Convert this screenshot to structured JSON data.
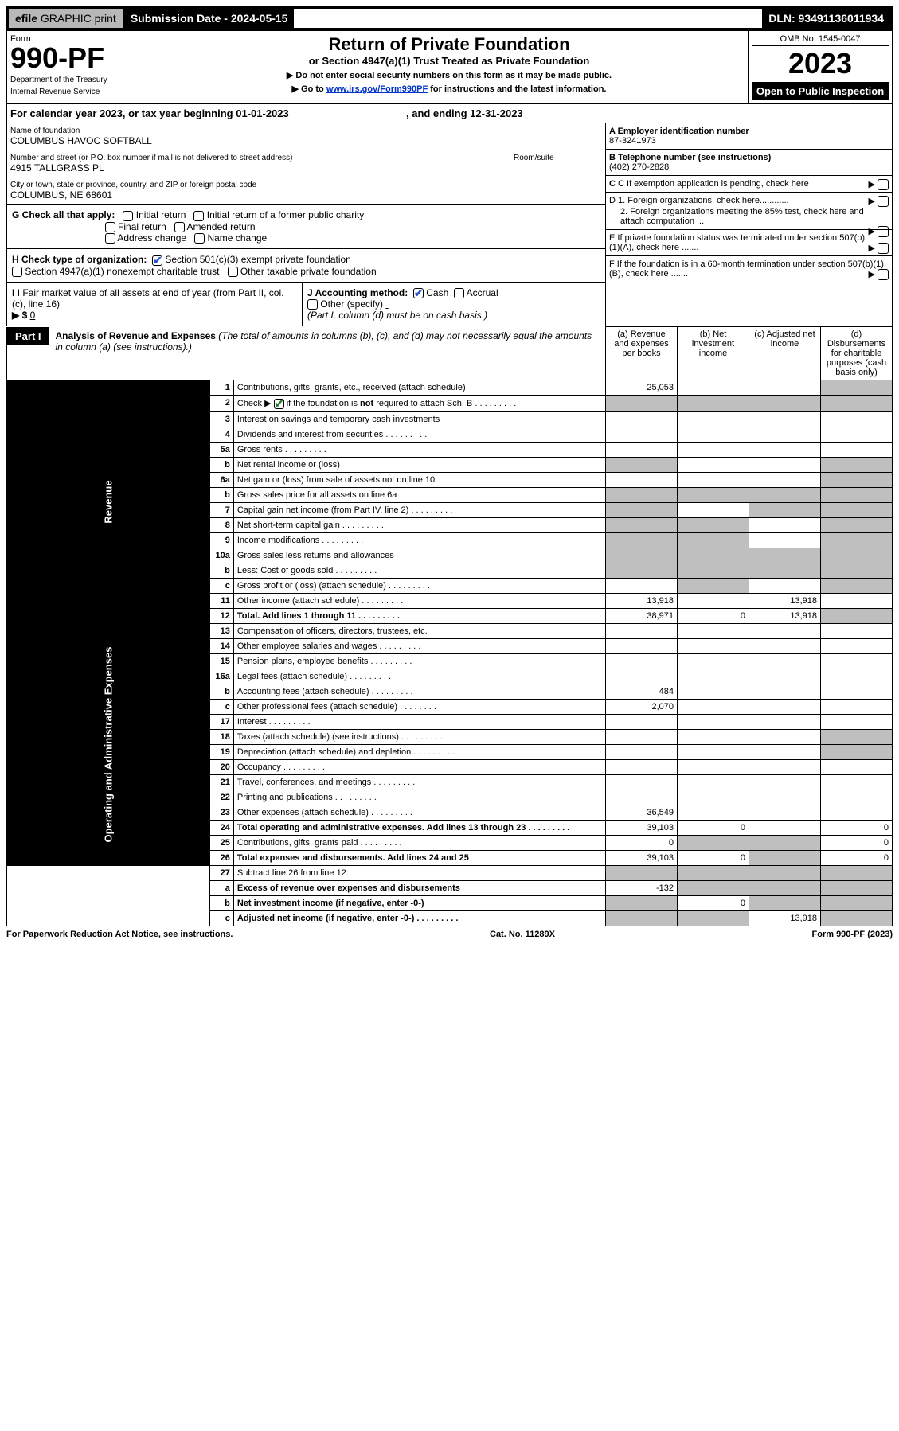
{
  "topbar": {
    "efile_prefix": "efile",
    "efile_words": "GRAPHIC  print",
    "submission_label": "Submission Date - 2024-05-15",
    "dln": "DLN: 93491136011934"
  },
  "header": {
    "form_word": "Form",
    "form_number": "990-PF",
    "dept": "Department of the Treasury",
    "irs": "Internal Revenue Service",
    "title_main": "Return of Private Foundation",
    "title_sub": "or Section 4947(a)(1) Trust Treated as Private Foundation",
    "note1": "▶ Do not enter social security numbers on this form as it may be made public.",
    "note2_pre": "▶ Go to ",
    "note2_link": "www.irs.gov/Form990PF",
    "note2_post": " for instructions and the latest information.",
    "omb": "OMB No. 1545-0047",
    "year": "2023",
    "open_public": "Open to Public Inspection"
  },
  "calendar": {
    "text_pre": "For calendar year 2023, or tax year beginning ",
    "begin": "01-01-2023",
    "mid": " , and ending ",
    "end": "12-31-2023"
  },
  "info": {
    "name_lbl": "Name of foundation",
    "name_val": "COLUMBUS HAVOC SOFTBALL",
    "addr_lbl": "Number and street (or P.O. box number if mail is not delivered to street address)",
    "addr_val": "4915 TALLGRASS PL",
    "room_lbl": "Room/suite",
    "city_lbl": "City or town, state or province, country, and ZIP or foreign postal code",
    "city_val": "COLUMBUS, NE  68601",
    "a_lbl": "A Employer identification number",
    "a_val": "87-3241973",
    "b_lbl": "B Telephone number (see instructions)",
    "b_val": "(402) 270-2828",
    "c_lbl": "C If exemption application is pending, check here",
    "d1_lbl": "D 1. Foreign organizations, check here............",
    "d2_lbl": "2. Foreign organizations meeting the 85% test, check here and attach computation ...",
    "e_lbl": "E  If private foundation status was terminated under section 507(b)(1)(A), check here .......",
    "f_lbl": "F  If the foundation is in a 60-month termination under section 507(b)(1)(B), check here .......",
    "g_lbl": "G Check all that apply:",
    "g_opts": [
      "Initial return",
      "Initial return of a former public charity",
      "Final return",
      "Amended return",
      "Address change",
      "Name change"
    ],
    "h_lbl": "H Check type of organization:",
    "h_opt1": "Section 501(c)(3) exempt private foundation",
    "h_opt2": "Section 4947(a)(1) nonexempt charitable trust",
    "h_opt3": "Other taxable private foundation",
    "i_lbl": "I Fair market value of all assets at end of year (from Part II, col. (c), line 16) ",
    "i_arrow": "▶ $",
    "i_val": "0",
    "j_lbl": "J Accounting method:",
    "j_cash": "Cash",
    "j_accrual": "Accrual",
    "j_other": "Other (specify)",
    "j_note": "(Part I, column (d) must be on cash basis.)"
  },
  "part1": {
    "label": "Part I",
    "title": "Analysis of Revenue and Expenses",
    "title_note": "(The total of amounts in columns (b), (c), and (d) may not necessarily equal the amounts in column (a) (see instructions).)",
    "col_a": "(a)  Revenue and expenses per books",
    "col_b": "(b)  Net investment income",
    "col_c": "(c)  Adjusted net income",
    "col_d": "(d)  Disbursements for charitable purposes (cash basis only)"
  },
  "side_labels": {
    "rev": "Revenue",
    "exp": "Operating and Administrative Expenses"
  },
  "rows": [
    {
      "n": "1",
      "d": "Contributions, gifts, grants, etc., received (attach schedule)",
      "a": "25,053",
      "shade_d": true
    },
    {
      "n": "2",
      "d": "Check ▶ ☑ if the foundation is not required to attach Sch. B",
      "dots": true,
      "shade_a": true,
      "shade_b": true,
      "shade_c": true,
      "shade_d": true,
      "bold_not": true
    },
    {
      "n": "3",
      "d": "Interest on savings and temporary cash investments"
    },
    {
      "n": "4",
      "d": "Dividends and interest from securities",
      "dots": true
    },
    {
      "n": "5a",
      "d": "Gross rents",
      "dots": true
    },
    {
      "n": "b",
      "d": "Net rental income or (loss)",
      "underline": true,
      "shade_a": true,
      "shade_d": true
    },
    {
      "n": "6a",
      "d": "Net gain or (loss) from sale of assets not on line 10",
      "shade_d": true
    },
    {
      "n": "b",
      "d": "Gross sales price for all assets on line 6a",
      "underline": true,
      "shade_a": true,
      "shade_b": true,
      "shade_c": true,
      "shade_d": true
    },
    {
      "n": "7",
      "d": "Capital gain net income (from Part IV, line 2)",
      "dots": true,
      "shade_a": true,
      "shade_c": true,
      "shade_d": true
    },
    {
      "n": "8",
      "d": "Net short-term capital gain",
      "dots": true,
      "shade_a": true,
      "shade_b": true,
      "shade_d": true
    },
    {
      "n": "9",
      "d": "Income modifications",
      "dots": true,
      "shade_a": true,
      "shade_b": true,
      "shade_d": true
    },
    {
      "n": "10a",
      "d": "Gross sales less returns and allowances",
      "underline": true,
      "shade_a": true,
      "shade_b": true,
      "shade_c": true,
      "shade_d": true
    },
    {
      "n": "b",
      "d": "Less: Cost of goods sold",
      "dots": true,
      "underline": true,
      "shade_a": true,
      "shade_b": true,
      "shade_c": true,
      "shade_d": true
    },
    {
      "n": "c",
      "d": "Gross profit or (loss) (attach schedule)",
      "dots": true,
      "shade_b": true,
      "shade_d": true
    },
    {
      "n": "11",
      "d": "Other income (attach schedule)",
      "dots": true,
      "a": "13,918",
      "c": "13,918"
    },
    {
      "n": "12",
      "d": "Total. Add lines 1 through 11",
      "dots": true,
      "bold": true,
      "a": "38,971",
      "b": "0",
      "c": "13,918",
      "shade_d": true
    }
  ],
  "exp_rows": [
    {
      "n": "13",
      "d": "Compensation of officers, directors, trustees, etc."
    },
    {
      "n": "14",
      "d": "Other employee salaries and wages",
      "dots": true
    },
    {
      "n": "15",
      "d": "Pension plans, employee benefits",
      "dots": true
    },
    {
      "n": "16a",
      "d": "Legal fees (attach schedule)",
      "dots": true
    },
    {
      "n": "b",
      "d": "Accounting fees (attach schedule)",
      "dots": true,
      "a": "484"
    },
    {
      "n": "c",
      "d": "Other professional fees (attach schedule)",
      "dots": true,
      "a": "2,070"
    },
    {
      "n": "17",
      "d": "Interest",
      "dots": true
    },
    {
      "n": "18",
      "d": "Taxes (attach schedule) (see instructions)",
      "dots": true,
      "shade_d": true
    },
    {
      "n": "19",
      "d": "Depreciation (attach schedule) and depletion",
      "dots": true,
      "shade_d": true
    },
    {
      "n": "20",
      "d": "Occupancy",
      "dots": true
    },
    {
      "n": "21",
      "d": "Travel, conferences, and meetings",
      "dots": true
    },
    {
      "n": "22",
      "d": "Printing and publications",
      "dots": true
    },
    {
      "n": "23",
      "d": "Other expenses (attach schedule)",
      "dots": true,
      "a": "36,549"
    },
    {
      "n": "24",
      "d": "Total operating and administrative expenses. Add lines 13 through 23",
      "dots": true,
      "bold": true,
      "a": "39,103",
      "b": "0",
      "d_val": "0"
    },
    {
      "n": "25",
      "d": "Contributions, gifts, grants paid",
      "dots": true,
      "a": "0",
      "shade_b": true,
      "shade_c": true,
      "d_val": "0"
    },
    {
      "n": "26",
      "d": "Total expenses and disbursements. Add lines 24 and 25",
      "bold": true,
      "a": "39,103",
      "b": "0",
      "shade_c": true,
      "d_val": "0"
    }
  ],
  "net_rows": [
    {
      "n": "27",
      "d": "Subtract line 26 from line 12:",
      "shade_a": true,
      "shade_b": true,
      "shade_c": true,
      "shade_d": true
    },
    {
      "n": "a",
      "d": "Excess of revenue over expenses and disbursements",
      "bold": true,
      "a": "-132",
      "shade_b": true,
      "shade_c": true,
      "shade_d": true
    },
    {
      "n": "b",
      "d": "Net investment income (if negative, enter -0-)",
      "bold": true,
      "shade_a": true,
      "b": "0",
      "shade_c": true,
      "shade_d": true
    },
    {
      "n": "c",
      "d": "Adjusted net income (if negative, enter -0-)",
      "dots": true,
      "bold": true,
      "shade_a": true,
      "shade_b": true,
      "c": "13,918",
      "shade_d": true
    }
  ],
  "footer": {
    "left": "For Paperwork Reduction Act Notice, see instructions.",
    "mid": "Cat. No. 11289X",
    "right": "Form 990-PF (2023)"
  }
}
